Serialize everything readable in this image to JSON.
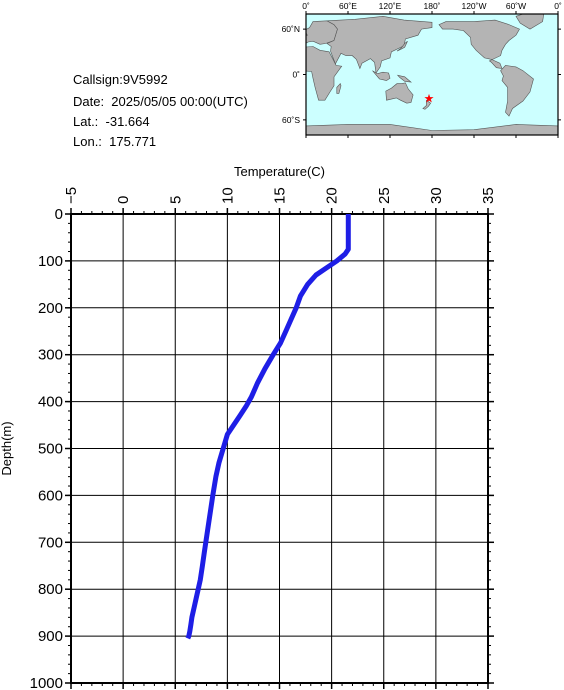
{
  "info": {
    "callsign": "Callsign:9V5992",
    "date": "Date:  2025/05/05 00:00(UTC)",
    "lat": "Lat.:  -31.664",
    "lon": "Lon.:  175.771"
  },
  "map": {
    "lon_labels": [
      "0˚",
      "60˚E",
      "120˚E",
      "180˚",
      "120˚W",
      "60˚W",
      "0˚"
    ],
    "lat_labels": [
      "60˚N",
      "0˚",
      "60˚S"
    ],
    "marker": {
      "lat": -31.664,
      "lon": 175.771,
      "symbol": "★"
    },
    "colors": {
      "ocean": "#ccffff",
      "land": "#b4b4b4",
      "marker": "#ff0000"
    }
  },
  "chart_data": {
    "type": "line",
    "title": "",
    "xlabel": "Temperature(C)",
    "ylabel": "Depth(m)",
    "xlim": [
      -5,
      35
    ],
    "ylim": [
      1000,
      0
    ],
    "x_ticks": [
      -5,
      0,
      5,
      10,
      15,
      20,
      25,
      30,
      35
    ],
    "y_ticks": [
      0,
      100,
      200,
      300,
      400,
      500,
      600,
      700,
      800,
      900,
      1000
    ],
    "x_tick_labels": [
      "−5",
      "0",
      "5",
      "10",
      "15",
      "20",
      "25",
      "30",
      "35"
    ],
    "y_tick_labels": [
      "0",
      "100",
      "200",
      "300",
      "400",
      "500",
      "600",
      "700",
      "800",
      "900",
      "1000"
    ],
    "grid": true,
    "line_color": "#1e1ee6",
    "series": [
      {
        "x": [
          21.6,
          21.6,
          21.6,
          21.3,
          20.5,
          19.5,
          18.5,
          17.7,
          17.0,
          16.6,
          16.1,
          15.6,
          15.1,
          14.4,
          13.6,
          12.9,
          12.3,
          11.8,
          11.2,
          10.6,
          10.0,
          9.6,
          9.2,
          8.9,
          8.6,
          8.4,
          8.2,
          8.0,
          7.8,
          7.6,
          7.4,
          7.2,
          7.0,
          6.8,
          6.6,
          6.5,
          6.4,
          6.3,
          6.2
        ],
        "y": [
          0,
          50,
          75,
          85,
          100,
          115,
          130,
          150,
          175,
          200,
          225,
          250,
          275,
          300,
          330,
          360,
          390,
          410,
          430,
          450,
          470,
          500,
          530,
          560,
          600,
          630,
          660,
          690,
          720,
          750,
          780,
          800,
          820,
          840,
          860,
          875,
          890,
          900,
          905
        ]
      }
    ]
  }
}
